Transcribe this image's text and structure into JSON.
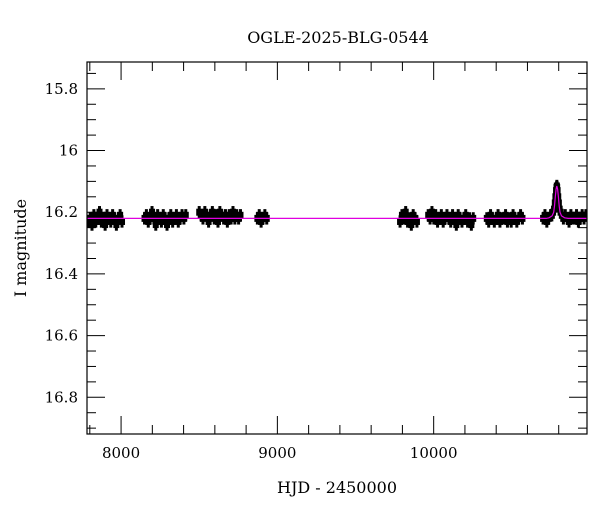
{
  "chart_data": {
    "type": "scatter",
    "title": "OGLE-2025-BLG-0544",
    "xlabel": "HJD - 2450000",
    "ylabel": "I magnitude",
    "xlim": [
      7782,
      10981
    ],
    "ylim": [
      16.919,
      15.713
    ],
    "y_inverted": true,
    "grid": false,
    "x_ticks": [
      8000,
      9000,
      10000
    ],
    "x_tick_labels": [
      "8000",
      "9000",
      "10000"
    ],
    "y_ticks": [
      15.8,
      16.0,
      16.2,
      16.4,
      16.6,
      16.8
    ],
    "y_tick_labels": [
      "15.8",
      "16",
      "16.2",
      "16.4",
      "16.6",
      "16.8"
    ],
    "point_color": "#000000",
    "model_color": "#e000e0",
    "error": 0.02,
    "points": [
      [
        7790,
        16.23
      ],
      [
        7802,
        16.22
      ],
      [
        7814,
        16.24
      ],
      [
        7826,
        16.21
      ],
      [
        7838,
        16.23
      ],
      [
        7850,
        16.22
      ],
      [
        7862,
        16.2
      ],
      [
        7874,
        16.23
      ],
      [
        7886,
        16.22
      ],
      [
        7898,
        16.24
      ],
      [
        7910,
        16.21
      ],
      [
        7922,
        16.22
      ],
      [
        7934,
        16.23
      ],
      [
        7946,
        16.21
      ],
      [
        7958,
        16.22
      ],
      [
        7970,
        16.24
      ],
      [
        7982,
        16.22
      ],
      [
        7994,
        16.21
      ],
      [
        8006,
        16.23
      ],
      [
        8150,
        16.22
      ],
      [
        8162,
        16.21
      ],
      [
        8174,
        16.23
      ],
      [
        8186,
        16.22
      ],
      [
        8198,
        16.2
      ],
      [
        8210,
        16.22
      ],
      [
        8222,
        16.24
      ],
      [
        8234,
        16.21
      ],
      [
        8246,
        16.22
      ],
      [
        8258,
        16.23
      ],
      [
        8270,
        16.21
      ],
      [
        8282,
        16.22
      ],
      [
        8294,
        16.24
      ],
      [
        8306,
        16.22
      ],
      [
        8318,
        16.21
      ],
      [
        8330,
        16.23
      ],
      [
        8342,
        16.22
      ],
      [
        8354,
        16.21
      ],
      [
        8366,
        16.23
      ],
      [
        8378,
        16.22
      ],
      [
        8390,
        16.21
      ],
      [
        8402,
        16.22
      ],
      [
        8414,
        16.21
      ],
      [
        8500,
        16.2
      ],
      [
        8512,
        16.21
      ],
      [
        8524,
        16.22
      ],
      [
        8536,
        16.2
      ],
      [
        8548,
        16.21
      ],
      [
        8560,
        16.23
      ],
      [
        8572,
        16.21
      ],
      [
        8584,
        16.2
      ],
      [
        8596,
        16.22
      ],
      [
        8608,
        16.21
      ],
      [
        8620,
        16.23
      ],
      [
        8632,
        16.2
      ],
      [
        8644,
        16.21
      ],
      [
        8656,
        16.22
      ],
      [
        8668,
        16.21
      ],
      [
        8680,
        16.23
      ],
      [
        8692,
        16.21
      ],
      [
        8704,
        16.22
      ],
      [
        8716,
        16.2
      ],
      [
        8728,
        16.22
      ],
      [
        8740,
        16.21
      ],
      [
        8752,
        16.22
      ],
      [
        8764,
        16.21
      ],
      [
        8872,
        16.22
      ],
      [
        8884,
        16.21
      ],
      [
        8896,
        16.23
      ],
      [
        8908,
        16.22
      ],
      [
        8920,
        16.21
      ],
      [
        8932,
        16.22
      ],
      [
        9785,
        16.23
      ],
      [
        9797,
        16.21
      ],
      [
        9809,
        16.22
      ],
      [
        9821,
        16.2
      ],
      [
        9833,
        16.23
      ],
      [
        9845,
        16.22
      ],
      [
        9857,
        16.24
      ],
      [
        9869,
        16.21
      ],
      [
        9881,
        16.22
      ],
      [
        9893,
        16.23
      ],
      [
        9965,
        16.21
      ],
      [
        9977,
        16.22
      ],
      [
        9989,
        16.2
      ],
      [
        10001,
        16.22
      ],
      [
        10013,
        16.21
      ],
      [
        10025,
        16.23
      ],
      [
        10037,
        16.22
      ],
      [
        10049,
        16.21
      ],
      [
        10061,
        16.23
      ],
      [
        10073,
        16.22
      ],
      [
        10085,
        16.21
      ],
      [
        10097,
        16.22
      ],
      [
        10109,
        16.23
      ],
      [
        10121,
        16.21
      ],
      [
        10133,
        16.22
      ],
      [
        10145,
        16.24
      ],
      [
        10157,
        16.21
      ],
      [
        10169,
        16.22
      ],
      [
        10181,
        16.23
      ],
      [
        10193,
        16.22
      ],
      [
        10205,
        16.21
      ],
      [
        10217,
        16.23
      ],
      [
        10229,
        16.22
      ],
      [
        10241,
        16.24
      ],
      [
        10253,
        16.22
      ],
      [
        10340,
        16.22
      ],
      [
        10352,
        16.23
      ],
      [
        10364,
        16.21
      ],
      [
        10376,
        16.22
      ],
      [
        10388,
        16.23
      ],
      [
        10400,
        16.22
      ],
      [
        10412,
        16.21
      ],
      [
        10424,
        16.23
      ],
      [
        10436,
        16.22
      ],
      [
        10448,
        16.22
      ],
      [
        10460,
        16.21
      ],
      [
        10472,
        16.23
      ],
      [
        10484,
        16.22
      ],
      [
        10496,
        16.23
      ],
      [
        10508,
        16.21
      ],
      [
        10520,
        16.22
      ],
      [
        10532,
        16.23
      ],
      [
        10544,
        16.22
      ],
      [
        10556,
        16.21
      ],
      [
        10568,
        16.22
      ],
      [
        10700,
        16.22
      ],
      [
        10712,
        16.21
      ],
      [
        10724,
        16.23
      ],
      [
        10736,
        16.22
      ],
      [
        10748,
        16.21
      ],
      [
        10756,
        16.21
      ],
      [
        10764,
        16.2
      ],
      [
        10770,
        16.19
      ],
      [
        10775,
        16.17
      ],
      [
        10779,
        16.15
      ],
      [
        10783,
        16.13
      ],
      [
        10786,
        16.12
      ],
      [
        10788,
        16.115
      ],
      [
        10790,
        16.12
      ],
      [
        10793,
        16.13
      ],
      [
        10797,
        16.15
      ],
      [
        10801,
        16.17
      ],
      [
        10806,
        16.19
      ],
      [
        10812,
        16.2
      ],
      [
        10820,
        16.21
      ],
      [
        10830,
        16.22
      ],
      [
        10842,
        16.21
      ],
      [
        10854,
        16.22
      ],
      [
        10866,
        16.23
      ],
      [
        10878,
        16.21
      ],
      [
        10890,
        16.22
      ],
      [
        10902,
        16.22
      ],
      [
        10914,
        16.21
      ],
      [
        10926,
        16.23
      ],
      [
        10938,
        16.22
      ],
      [
        10950,
        16.21
      ],
      [
        10962,
        16.22
      ],
      [
        10974,
        16.21
      ]
    ],
    "model": [
      [
        7782,
        16.22
      ],
      [
        10720,
        16.22
      ],
      [
        10738,
        16.218
      ],
      [
        10758,
        16.212
      ],
      [
        10768,
        16.2
      ],
      [
        10773,
        16.18
      ],
      [
        10778,
        16.15
      ],
      [
        10783,
        16.125
      ],
      [
        10788,
        16.115
      ],
      [
        10793,
        16.125
      ],
      [
        10798,
        16.15
      ],
      [
        10803,
        16.18
      ],
      [
        10808,
        16.2
      ],
      [
        10818,
        16.212
      ],
      [
        10838,
        16.218
      ],
      [
        10860,
        16.22
      ],
      [
        10981,
        16.22
      ]
    ]
  }
}
